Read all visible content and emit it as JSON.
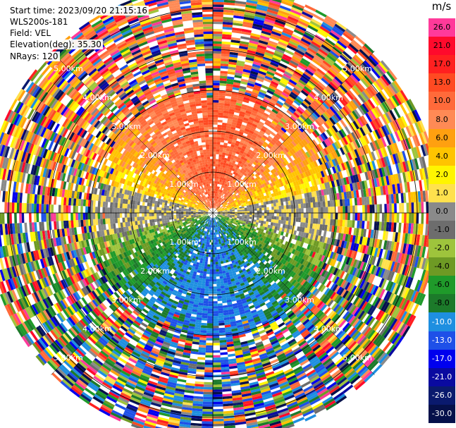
{
  "header": {
    "start_time": "Start time: 2023/09/20 21:15:16",
    "station": "WLS200s-181",
    "field": "Field: VEL",
    "elevation": "Elevation(deg): 35.30",
    "nrays": "NRays: 120"
  },
  "colorbar": {
    "unit": "m/s",
    "entries": [
      {
        "label": "26.0",
        "color": "#ff3a9a"
      },
      {
        "label": "21.0",
        "color": "#ff0a2c"
      },
      {
        "label": "17.0",
        "color": "#ff2020"
      },
      {
        "label": "13.0",
        "color": "#ff4a22"
      },
      {
        "label": "10.0",
        "color": "#ff6a3a"
      },
      {
        "label": "8.0",
        "color": "#ff8a55"
      },
      {
        "label": "6.0",
        "color": "#ffa010"
      },
      {
        "label": "4.0",
        "color": "#ffc400"
      },
      {
        "label": "2.0",
        "color": "#fff500"
      },
      {
        "label": "1.0",
        "color": "#ffe14d"
      },
      {
        "label": "0.0",
        "color": "#8a8a8a"
      },
      {
        "label": "-1.0",
        "color": "#6d6d6d"
      },
      {
        "label": "-2.0",
        "color": "#9ec43c"
      },
      {
        "label": "-4.0",
        "color": "#6e9a24"
      },
      {
        "label": "-6.0",
        "color": "#1f9a2a"
      },
      {
        "label": "-8.0",
        "color": "#1c7a2a"
      },
      {
        "label": "-10.0",
        "color": "#1e8fe0"
      },
      {
        "label": "-13.0",
        "color": "#1e50e8"
      },
      {
        "label": "-17.0",
        "color": "#0000ee"
      },
      {
        "label": "-21.0",
        "color": "#0a0aa0"
      },
      {
        "label": "-26.0",
        "color": "#0a1a6e"
      },
      {
        "label": "-30.0",
        "color": "#05104a"
      }
    ]
  },
  "chart_data": {
    "type": "heatmap",
    "projection": "polar-ppi",
    "field": "VEL",
    "units": "m/s",
    "elevation_deg": 35.3,
    "nrays": 120,
    "range_rings_km": [
      1.0,
      2.0,
      3.0,
      4.0,
      5.0
    ],
    "ring_labels": [
      "1.00km",
      "2.00km",
      "3.00km",
      "4.00km",
      "5.00km"
    ],
    "max_range_km": 5.6,
    "color_levels": [
      26.0,
      21.0,
      17.0,
      13.0,
      10.0,
      8.0,
      6.0,
      4.0,
      2.0,
      1.0,
      0.0,
      -1.0,
      -2.0,
      -4.0,
      -6.0,
      -8.0,
      -10.0,
      -13.0,
      -17.0,
      -21.0,
      -26.0,
      -30.0
    ],
    "pattern": {
      "north_sector": "positive 2 to 13 m/s (yellow/orange/salmon)",
      "south_sector": "negative -2 to -10 m/s (green, blue near -10)",
      "east_west": "near 0 m/s (gray)",
      "beyond_ring_km": 3.0,
      "beyond_ring_note": "noisy/speckled across full scale"
    }
  }
}
